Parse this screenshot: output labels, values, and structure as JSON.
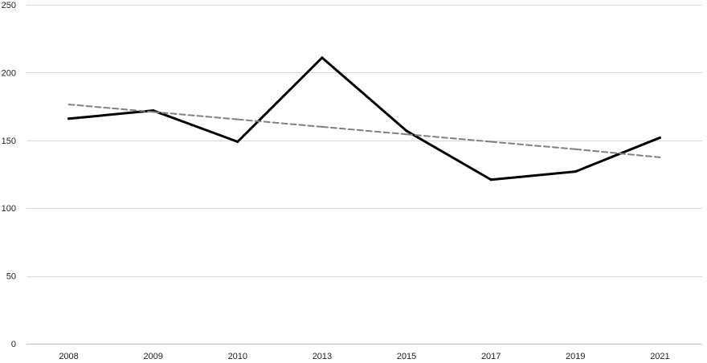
{
  "chart_data": {
    "type": "line",
    "title": "",
    "xlabel": "",
    "ylabel": "",
    "categories": [
      "2008",
      "2009",
      "2010",
      "2013",
      "2015",
      "2017",
      "2019",
      "2021"
    ],
    "series": [
      {
        "values": [
          166,
          172,
          149,
          211,
          157,
          121,
          127,
          152
        ],
        "color": "#000000",
        "style": "solid"
      },
      {
        "values": [
          176.5,
          171,
          165.5,
          160,
          154.5,
          149,
          143.5,
          137.5
        ],
        "color": "#808080",
        "style": "dashed",
        "kind": "trendline"
      }
    ],
    "ylim": [
      0,
      250
    ],
    "yticks": [
      0,
      50,
      100,
      150,
      200,
      250
    ],
    "grid": true,
    "legend": "none"
  }
}
